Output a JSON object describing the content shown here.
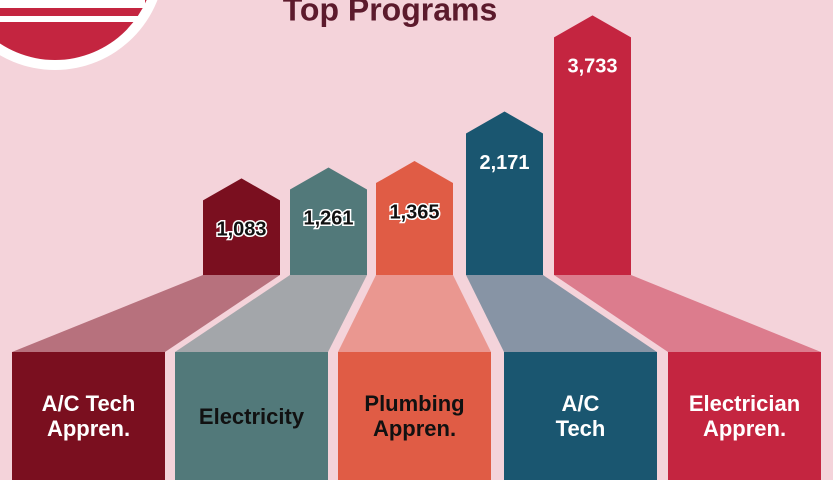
{
  "chart_data": {
    "type": "bar",
    "title": "Top Programs",
    "categories": [
      "A/C Tech Appren.",
      "Electricity",
      "Plumbing Appren.",
      "A/C Tech",
      "Electrician Appren."
    ],
    "values": [
      1083,
      1261,
      1365,
      2171,
      3733
    ],
    "value_labels": [
      "1,083",
      "1,261",
      "1,365",
      "2,171",
      "3,733"
    ],
    "colors": [
      "#7a0f1f",
      "#52797a",
      "#e05c45",
      "#1a5670",
      "#c42540"
    ]
  }
}
